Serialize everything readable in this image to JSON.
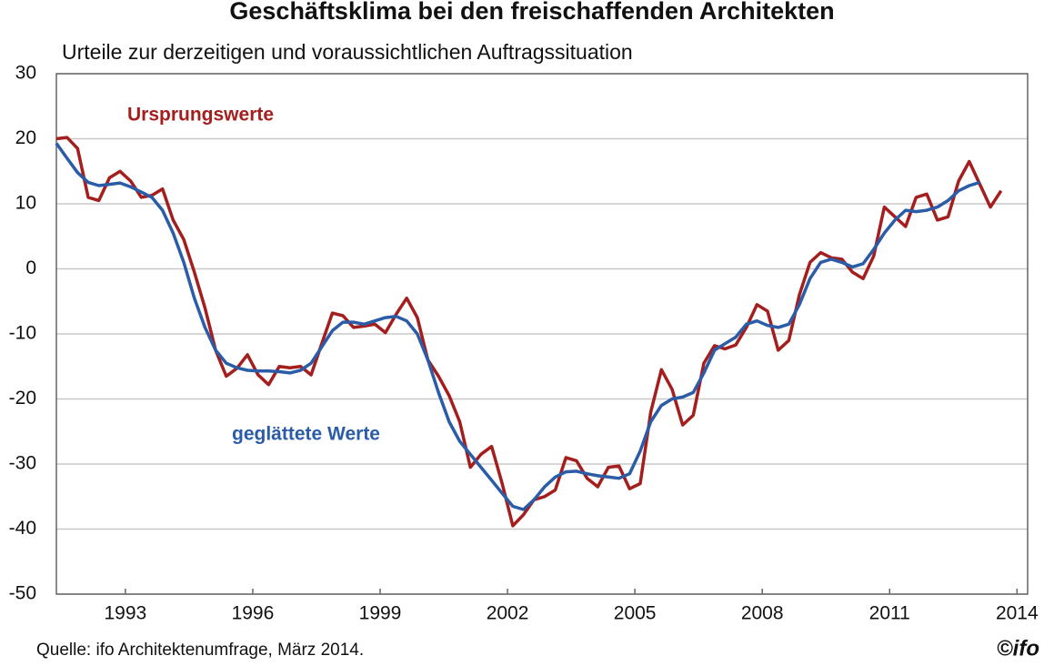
{
  "chart_data": {
    "type": "line",
    "title": "Geschäftsklima bei den freischaffenden Architekten",
    "subtitle": "Urteile zur derzeitigen und voraussichtlichen Auftragssituation",
    "source": "Quelle: ifo Architektenumfrage, März 2014.",
    "logo": "©ifo",
    "x": [
      1991.375,
      1991.625,
      1991.875,
      1992.125,
      1992.375,
      1992.625,
      1992.875,
      1993.125,
      1993.375,
      1993.625,
      1993.875,
      1994.125,
      1994.375,
      1994.625,
      1994.875,
      1995.125,
      1995.375,
      1995.625,
      1995.875,
      1996.125,
      1996.375,
      1996.625,
      1996.875,
      1997.125,
      1997.375,
      1997.625,
      1997.875,
      1998.125,
      1998.375,
      1998.625,
      1998.875,
      1999.125,
      1999.375,
      1999.625,
      1999.875,
      2000.125,
      2000.375,
      2000.625,
      2000.875,
      2001.125,
      2001.375,
      2001.625,
      2001.875,
      2002.125,
      2002.375,
      2002.625,
      2002.875,
      2003.125,
      2003.375,
      2003.625,
      2003.875,
      2004.125,
      2004.375,
      2004.625,
      2004.875,
      2005.125,
      2005.375,
      2005.625,
      2005.875,
      2006.125,
      2006.375,
      2006.625,
      2006.875,
      2007.125,
      2007.375,
      2007.625,
      2007.875,
      2008.125,
      2008.375,
      2008.625,
      2008.875,
      2009.125,
      2009.375,
      2009.625,
      2009.875,
      2010.125,
      2010.375,
      2010.625,
      2010.875,
      2011.125,
      2011.375,
      2011.625,
      2011.875,
      2012.125,
      2012.375,
      2012.625,
      2012.875,
      2013.125,
      2013.375,
      2013.625
    ],
    "series": [
      {
        "name": "Ursprungswerte",
        "color": "#a51e1e",
        "values": [
          20,
          20.2,
          18.5,
          11,
          10.5,
          14,
          15,
          13.5,
          11,
          11.3,
          12.3,
          7.5,
          4.5,
          -0.5,
          -6,
          -12.5,
          -16.5,
          -15.3,
          -13.2,
          -16.3,
          -17.8,
          -15,
          -15.2,
          -15,
          -16.3,
          -11.5,
          -6.8,
          -7.2,
          -9,
          -8.8,
          -8.5,
          -9.8,
          -7,
          -4.5,
          -7.5,
          -14,
          -16.5,
          -19.5,
          -23.5,
          -30.5,
          -28.5,
          -27.3,
          -33,
          -39.5,
          -37.8,
          -35.5,
          -35,
          -34,
          -29,
          -29.5,
          -32.2,
          -33.5,
          -30.5,
          -30.3,
          -33.8,
          -33,
          -22,
          -15.5,
          -18.5,
          -24,
          -22.5,
          -14.5,
          -11.8,
          -12.3,
          -11.7,
          -9,
          -5.5,
          -6.5,
          -12.5,
          -11,
          -4,
          1,
          2.5,
          1.7,
          1.5,
          -0.5,
          -1.5,
          2,
          9.5,
          8,
          6.5,
          11,
          11.5,
          7.5,
          8,
          13.5,
          16.5,
          13,
          9.5,
          12
        ]
      },
      {
        "name": "geglättete Werte",
        "color": "#2a5ca8",
        "values": [
          19.3,
          17,
          14.8,
          13.3,
          12.8,
          13,
          13.2,
          12.6,
          11.8,
          11,
          9,
          5.5,
          1,
          -4.5,
          -9,
          -12.5,
          -14.5,
          -15.2,
          -15.6,
          -15.7,
          -15.7,
          -15.8,
          -16,
          -15.6,
          -14.5,
          -12,
          -9.5,
          -8.2,
          -8.2,
          -8.5,
          -8,
          -7.5,
          -7.3,
          -8,
          -10,
          -14,
          -19,
          -23.5,
          -26.5,
          -28.5,
          -30.5,
          -32.5,
          -34.5,
          -36.5,
          -37,
          -35.5,
          -33.5,
          -32,
          -31.2,
          -31.1,
          -31.5,
          -31.8,
          -32,
          -32.2,
          -31.5,
          -28,
          -23.5,
          -21,
          -20,
          -19.7,
          -19,
          -16,
          -12.5,
          -11.5,
          -10.5,
          -8.5,
          -8,
          -8.7,
          -9,
          -8.5,
          -5.5,
          -1.5,
          1,
          1.5,
          1,
          0.3,
          0.8,
          3,
          5.5,
          7.5,
          9,
          8.8,
          9,
          9.5,
          10.5,
          12,
          12.8,
          13.3,
          null,
          null
        ]
      }
    ],
    "xlim": [
      1991.375,
      2014.25
    ],
    "xticks": [
      1993,
      1996,
      1999,
      2002,
      2005,
      2008,
      2011,
      2014
    ],
    "ylim": [
      -50,
      30
    ],
    "yticks": [
      -50,
      -40,
      -30,
      -20,
      -10,
      0,
      10,
      20,
      30
    ],
    "grid": true
  }
}
